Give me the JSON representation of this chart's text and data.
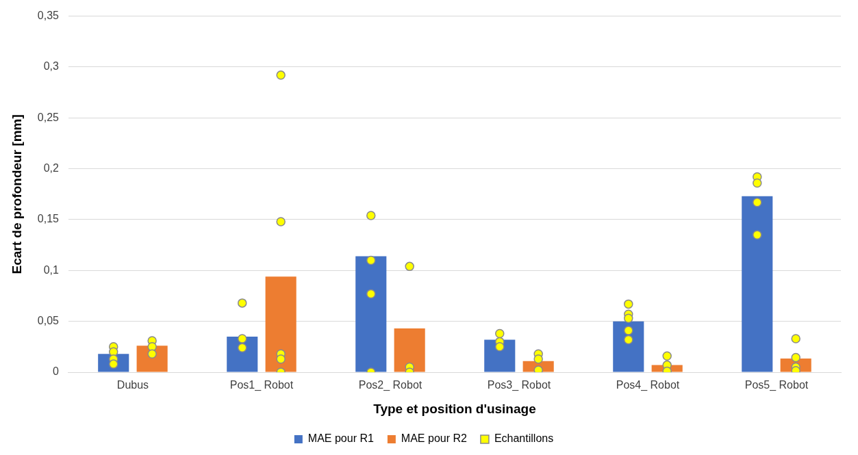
{
  "chart_data": {
    "type": "bar",
    "xlabel": "Type et position d'usinage",
    "ylabel": "Ecart de profondeur [mm]",
    "categories": [
      "Dubus",
      "Pos1_ Robot",
      "Pos2_ Robot",
      "Pos3_ Robot",
      "Pos4_ Robot",
      "Pos5_ Robot"
    ],
    "series": [
      {
        "name": "MAE pour R1",
        "color": "#4472c4",
        "values": [
          0.018,
          0.035,
          0.114,
          0.032,
          0.05,
          0.173
        ]
      },
      {
        "name": "MAE pour R2",
        "color": "#ed7d31",
        "values": [
          0.026,
          0.094,
          0.043,
          0.011,
          0.007,
          0.0135
        ]
      },
      {
        "name": "Echantillons",
        "type": "scatter",
        "color": "#ffff00",
        "x": [
          "Dubus",
          "Dubus",
          "Dubus",
          "Dubus",
          "Pos1_ Robot",
          "Pos1_ Robot",
          "Pos1_ Robot",
          "Pos2_ Robot",
          "Pos2_ Robot",
          "Pos2_ Robot",
          "Pos2_ Robot",
          "Pos3_ Robot",
          "Pos3_ Robot",
          "Pos3_ Robot",
          "Pos4_ Robot",
          "Pos4_ Robot",
          "Pos4_ Robot",
          "Pos4_ Robot",
          "Pos4_ Robot",
          "Pos5_ Robot",
          "Pos5_ Robot",
          "Pos5_ Robot",
          "Pos5_ Robot"
        ],
        "values": [
          0.025,
          0.02,
          0.013,
          0.008,
          0.068,
          0.033,
          0.024,
          0.154,
          0.11,
          0.077,
          0,
          0.038,
          0.03,
          0.025,
          0.067,
          0.057,
          0.053,
          0.041,
          0.032,
          0.192,
          0.186,
          0.167,
          0.135
        ]
      },
      {
        "type": "scatter",
        "color": "#ffff00",
        "x": [
          "Dubus",
          "Dubus",
          "Dubus",
          "Pos1_ Robot",
          "Pos1_ Robot",
          "Pos1_ Robot",
          "Pos1_ Robot",
          "Pos1_ Robot",
          "Pos2_ Robot",
          "Pos2_ Robot",
          "Pos2_ Robot",
          "Pos3_ Robot",
          "Pos3_ Robot",
          "Pos3_ Robot",
          "Pos4_ Robot",
          "Pos4_ Robot",
          "Pos4_ Robot",
          "Pos5_ Robot",
          "Pos5_ Robot",
          "Pos5_ Robot",
          "Pos5_ Robot"
        ],
        "values": [
          0.031,
          0.025,
          0.018,
          0.292,
          0.148,
          0.018,
          0.013,
          0,
          0.104,
          0.005,
          0,
          0.018,
          0.013,
          0.002,
          0.016,
          0.007,
          0.001,
          0.033,
          0.0145,
          0.005,
          0.0015
        ]
      }
    ],
    "ylim": [
      0,
      0.35
    ],
    "yticks": [
      {
        "value": 0,
        "label": "0"
      },
      {
        "value": 0.05,
        "label": "0,05"
      },
      {
        "value": 0.1,
        "label": "0,1"
      },
      {
        "value": 0.15,
        "label": "0,15"
      },
      {
        "value": 0.2,
        "label": "0,2"
      },
      {
        "value": 0.25,
        "label": "0,25"
      },
      {
        "value": 0.3,
        "label": "0,3"
      },
      {
        "value": 0.35,
        "label": "0,35"
      }
    ],
    "grid": "y",
    "legend": "bottom",
    "marker": "circle"
  }
}
